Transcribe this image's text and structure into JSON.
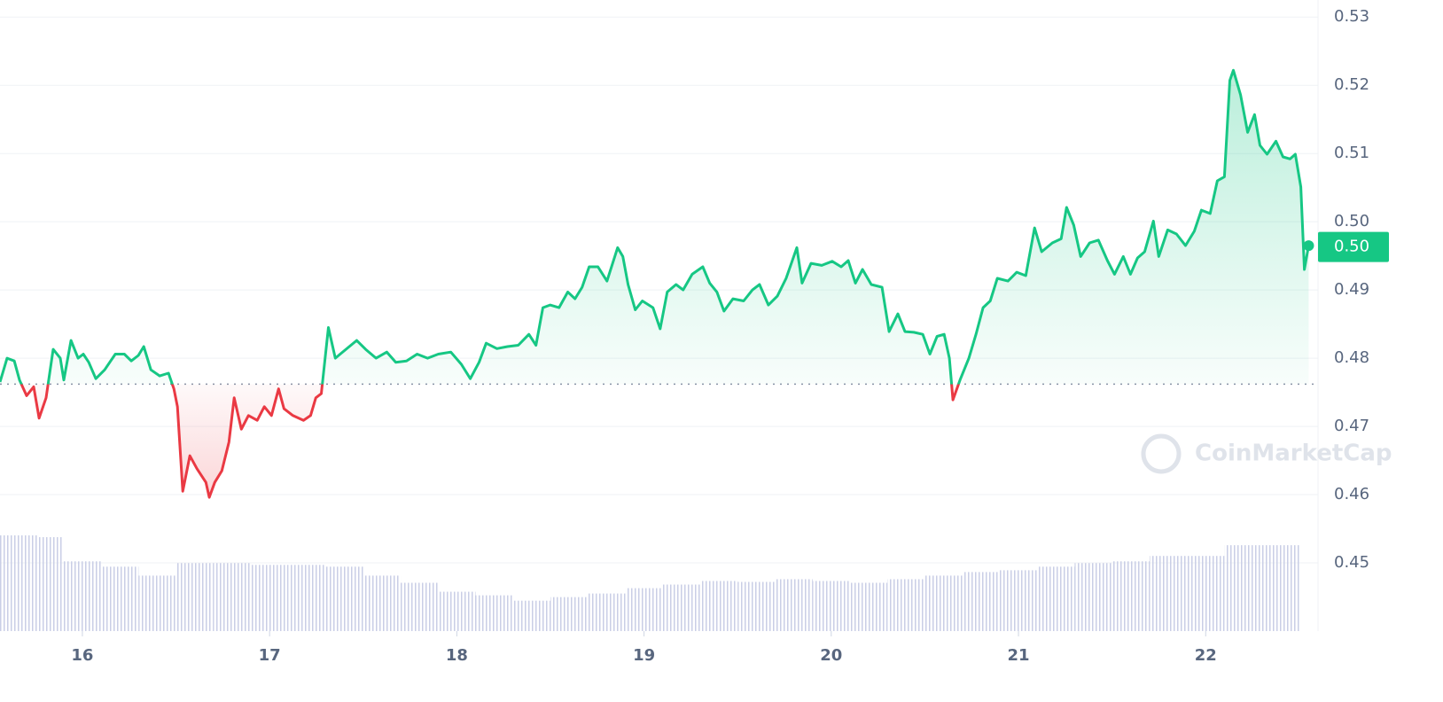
{
  "chart_data": {
    "type": "line",
    "x": [
      15.56,
      15.598,
      15.636,
      15.664,
      15.702,
      15.74,
      15.769,
      15.806,
      15.844,
      15.882,
      15.901,
      15.939,
      15.977,
      16.005,
      16.034,
      16.072,
      16.119,
      16.176,
      16.224,
      16.261,
      16.299,
      16.328,
      16.366,
      16.413,
      16.46,
      16.489,
      16.508,
      16.536,
      16.574,
      16.612,
      16.66,
      16.678,
      16.707,
      16.745,
      16.783,
      16.811,
      16.849,
      16.887,
      16.934,
      16.972,
      17.01,
      17.048,
      17.077,
      17.124,
      17.181,
      17.219,
      17.247,
      17.276,
      17.314,
      17.351,
      17.408,
      17.465,
      17.513,
      17.569,
      17.626,
      17.674,
      17.731,
      17.788,
      17.844,
      17.901,
      17.968,
      18.024,
      18.072,
      18.119,
      18.157,
      18.214,
      18.271,
      18.328,
      18.385,
      18.423,
      18.46,
      18.498,
      18.546,
      18.593,
      18.631,
      18.669,
      18.707,
      18.754,
      18.802,
      18.859,
      18.887,
      18.915,
      18.953,
      18.991,
      19.048,
      19.086,
      19.124,
      19.171,
      19.209,
      19.257,
      19.314,
      19.351,
      19.389,
      19.427,
      19.475,
      19.532,
      19.579,
      19.617,
      19.664,
      19.712,
      19.759,
      19.816,
      19.844,
      19.892,
      19.949,
      20.005,
      20.053,
      20.091,
      20.129,
      20.167,
      20.214,
      20.271,
      20.309,
      20.356,
      20.394,
      20.441,
      20.489,
      20.527,
      20.565,
      20.603,
      20.631,
      20.65,
      20.688,
      20.735,
      20.773,
      20.811,
      20.849,
      20.887,
      20.944,
      20.991,
      21.039,
      21.086,
      21.124,
      21.181,
      21.228,
      21.257,
      21.295,
      21.332,
      21.38,
      21.427,
      21.475,
      21.513,
      21.56,
      21.598,
      21.636,
      21.674,
      21.721,
      21.749,
      21.797,
      21.844,
      21.892,
      21.939,
      21.977,
      22.024,
      22.062,
      22.1,
      22.129,
      22.148,
      22.186,
      22.224,
      22.261,
      22.29,
      22.328,
      22.375,
      22.413,
      22.451,
      22.479,
      22.508,
      22.527,
      22.55
    ],
    "series": [
      {
        "name": "Price",
        "color": "#16c784",
        "below_color": "#ea3943",
        "values": [
          0.4765,
          0.48,
          0.4796,
          0.4768,
          0.4745,
          0.4758,
          0.4712,
          0.4742,
          0.4813,
          0.48,
          0.4768,
          0.4826,
          0.48,
          0.4806,
          0.4794,
          0.477,
          0.4783,
          0.4806,
          0.4806,
          0.4796,
          0.4804,
          0.4817,
          0.4783,
          0.4774,
          0.4778,
          0.4755,
          0.4729,
          0.4605,
          0.4657,
          0.4638,
          0.4618,
          0.4596,
          0.4618,
          0.4635,
          0.4677,
          0.4742,
          0.4696,
          0.4716,
          0.4709,
          0.4729,
          0.4716,
          0.4755,
          0.4726,
          0.4716,
          0.4709,
          0.4716,
          0.4742,
          0.4748,
          0.4845,
          0.48,
          0.4813,
          0.4826,
          0.4813,
          0.48,
          0.4809,
          0.4794,
          0.4796,
          0.4806,
          0.48,
          0.4806,
          0.4809,
          0.4791,
          0.477,
          0.4794,
          0.4822,
          0.4814,
          0.4817,
          0.4819,
          0.4835,
          0.4819,
          0.4874,
          0.4878,
          0.4874,
          0.4897,
          0.4887,
          0.4904,
          0.4934,
          0.4934,
          0.4913,
          0.4962,
          0.4949,
          0.4908,
          0.4871,
          0.4884,
          0.4874,
          0.4843,
          0.4897,
          0.4908,
          0.49,
          0.4923,
          0.4934,
          0.491,
          0.4897,
          0.4869,
          0.4887,
          0.4884,
          0.49,
          0.4908,
          0.4878,
          0.4891,
          0.4917,
          0.4962,
          0.491,
          0.4939,
          0.4936,
          0.4942,
          0.4934,
          0.4943,
          0.491,
          0.493,
          0.4908,
          0.4904,
          0.4839,
          0.4865,
          0.4839,
          0.4838,
          0.4835,
          0.4806,
          0.4832,
          0.4835,
          0.48,
          0.4739,
          0.4768,
          0.48,
          0.4835,
          0.4874,
          0.4884,
          0.4917,
          0.4913,
          0.4926,
          0.4921,
          0.4991,
          0.4956,
          0.4969,
          0.4975,
          0.5021,
          0.4995,
          0.4949,
          0.4969,
          0.4973,
          0.4943,
          0.4923,
          0.4949,
          0.4923,
          0.4947,
          0.4956,
          0.5001,
          0.4949,
          0.4988,
          0.4982,
          0.4965,
          0.4986,
          0.5017,
          0.5012,
          0.506,
          0.5066,
          0.5207,
          0.5222,
          0.5186,
          0.5131,
          0.5157,
          0.5112,
          0.5099,
          0.5118,
          0.5095,
          0.5092,
          0.5099,
          0.5051,
          0.493,
          0.4965
        ]
      }
    ],
    "baseline": 0.4762,
    "current_price": {
      "value": 0.4963,
      "label": "0.50"
    },
    "volume": {
      "color": "#c9cee6",
      "x": [
        15.6,
        15.8,
        16.0,
        16.2,
        16.4,
        16.6,
        16.8,
        17.0,
        17.2,
        17.4,
        17.6,
        17.8,
        18.0,
        18.2,
        18.4,
        18.6,
        18.8,
        19.0,
        19.2,
        19.4,
        19.6,
        19.8,
        20.0,
        20.2,
        20.4,
        20.6,
        20.8,
        21.0,
        21.2,
        21.4,
        21.6,
        21.8,
        22.0,
        22.2,
        22.4
      ],
      "values": [
        107,
        105,
        78,
        72,
        62,
        76,
        76,
        74,
        74,
        72,
        62,
        54,
        44,
        40,
        34,
        38,
        42,
        48,
        52,
        56,
        55,
        58,
        56,
        54,
        58,
        62,
        66,
        68,
        72,
        76,
        78,
        84,
        84,
        96,
        96
      ]
    },
    "xlim": [
      15.56,
      22.6
    ],
    "xticks": [
      16,
      17,
      18,
      19,
      20,
      21,
      22
    ],
    "ylim": [
      0.44,
      0.5325
    ],
    "yticks": [
      0.45,
      0.46,
      0.47,
      0.48,
      0.49,
      {
        "value": 0.5,
        "label": "0.50"
      },
      0.51,
      0.52,
      0.53
    ],
    "grid": true,
    "watermark": "CoinMarketCap"
  }
}
